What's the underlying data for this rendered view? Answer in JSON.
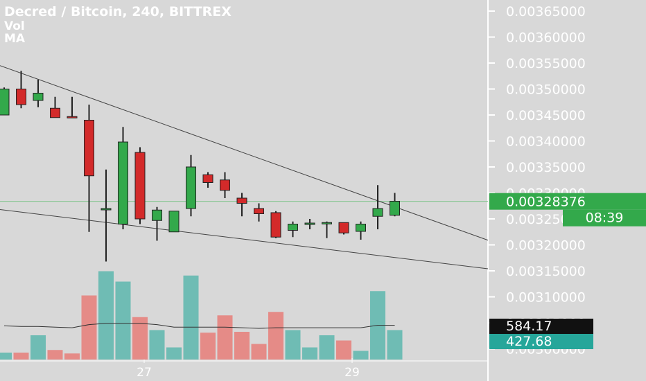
{
  "header": {
    "title": "Decred / Bitcoin, 240, BITTREX",
    "indicators": [
      "Vol",
      "MA"
    ]
  },
  "price_axis": {
    "labels": [
      "0.00365000",
      "0.00360000",
      "0.00355000",
      "0.00350000",
      "0.00345000",
      "0.00340000",
      "0.00335000",
      "0.00330000",
      "0.00325000",
      "0.00320000",
      "0.00315000",
      "0.00310000",
      "0.00305000",
      "0.00300000"
    ]
  },
  "current_price": {
    "value": "0.00328376",
    "countdown": "08:39",
    "color": "#33a94b"
  },
  "volume_badges": {
    "volume_ma": {
      "value": "584.17",
      "color": "#111111"
    },
    "volume": {
      "value": "427.68",
      "color": "#26a69a"
    }
  },
  "time_axis": {
    "labels": [
      "27",
      "29"
    ]
  },
  "colors": {
    "background": "#d8d8d8",
    "up": "#33a94b",
    "down": "#d32a2a",
    "vol_up": "#6fbcb4",
    "vol_down": "#e58b87",
    "axis_text": "#ffffff",
    "trendline": "#444444"
  },
  "chart_data": {
    "type": "candlestick",
    "symbol": "Decred / Bitcoin",
    "interval": "240",
    "exchange": "BITTREX",
    "ylim": [
      0.003,
      0.00368
    ],
    "candles": [
      {
        "o": 0.00345,
        "h": 0.003503,
        "l": 0.00345,
        "c": 0.0035
      },
      {
        "o": 0.0035,
        "h": 0.003535,
        "l": 0.003463,
        "c": 0.00347
      },
      {
        "o": 0.003478,
        "h": 0.003518,
        "l": 0.003465,
        "c": 0.003492
      },
      {
        "o": 0.003463,
        "h": 0.003485,
        "l": 0.003445,
        "c": 0.003445
      },
      {
        "o": 0.003447,
        "h": 0.003485,
        "l": 0.003445,
        "c": 0.003445
      },
      {
        "o": 0.00344,
        "h": 0.00347,
        "l": 0.003225,
        "c": 0.003333
      },
      {
        "o": 0.00327,
        "h": 0.003345,
        "l": 0.003168,
        "c": 0.00327
      },
      {
        "o": 0.00324,
        "h": 0.003427,
        "l": 0.00323,
        "c": 0.003398
      },
      {
        "o": 0.003378,
        "h": 0.003388,
        "l": 0.00324,
        "c": 0.00325
      },
      {
        "o": 0.003247,
        "h": 0.003273,
        "l": 0.003208,
        "c": 0.003267
      },
      {
        "o": 0.003225,
        "h": 0.003265,
        "l": 0.003225,
        "c": 0.003265
      },
      {
        "o": 0.00327,
        "h": 0.003373,
        "l": 0.003255,
        "c": 0.00335
      },
      {
        "o": 0.003335,
        "h": 0.00334,
        "l": 0.00331,
        "c": 0.00332
      },
      {
        "o": 0.003325,
        "h": 0.00334,
        "l": 0.00329,
        "c": 0.003305
      },
      {
        "o": 0.00329,
        "h": 0.0033,
        "l": 0.003255,
        "c": 0.00328
      },
      {
        "o": 0.00327,
        "h": 0.00328,
        "l": 0.003245,
        "c": 0.00326
      },
      {
        "o": 0.003262,
        "h": 0.003265,
        "l": 0.003213,
        "c": 0.003215
      },
      {
        "o": 0.003228,
        "h": 0.003245,
        "l": 0.003215,
        "c": 0.00324
      },
      {
        "o": 0.003242,
        "h": 0.00325,
        "l": 0.00323,
        "c": 0.003242
      },
      {
        "o": 0.003243,
        "h": 0.003245,
        "l": 0.003213,
        "c": 0.003243
      },
      {
        "o": 0.003243,
        "h": 0.003243,
        "l": 0.00322,
        "c": 0.003223
      },
      {
        "o": 0.003226,
        "h": 0.003245,
        "l": 0.00321,
        "c": 0.00324
      },
      {
        "o": 0.003255,
        "h": 0.003315,
        "l": 0.00323,
        "c": 0.00327
      },
      {
        "o": 0.003257,
        "h": 0.0033,
        "l": 0.003255,
        "c": 0.003284
      }
    ],
    "volume": [
      8,
      8,
      28,
      11,
      7,
      74,
      102,
      90,
      49,
      34,
      14,
      97,
      31,
      51,
      32,
      18,
      55,
      34,
      14,
      28,
      22,
      10,
      79,
      34
    ],
    "volume_ma": [
      54,
      53,
      53,
      52,
      51,
      56,
      58,
      58,
      58,
      56,
      52,
      52,
      52,
      52,
      51,
      50,
      51,
      51,
      51,
      51,
      51,
      51,
      55,
      55
    ]
  }
}
